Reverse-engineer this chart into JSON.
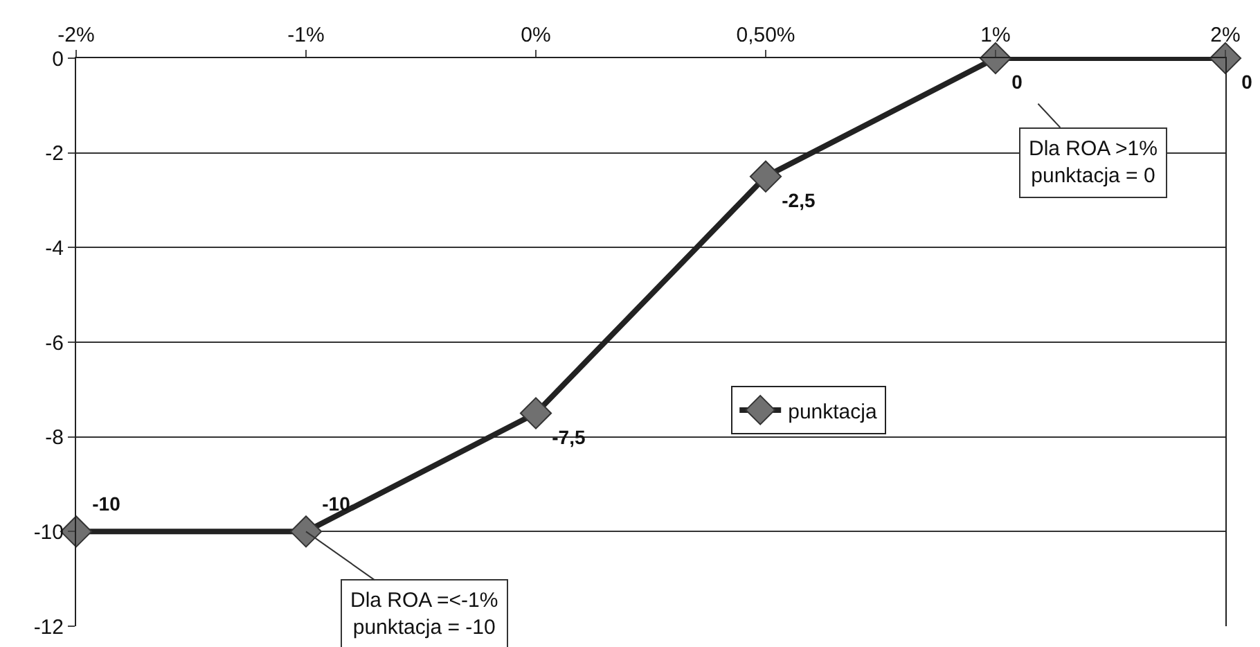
{
  "chart_data": {
    "type": "line",
    "categories": [
      "-2%",
      "-1%",
      "0%",
      "0,50%",
      "1%",
      "2%"
    ],
    "series": [
      {
        "name": "punktacja",
        "color": "#222222",
        "values": [
          -10,
          -10,
          -7.5,
          -2.5,
          0,
          0
        ],
        "value_labels": [
          "-10",
          "-10",
          "-7,5",
          "-2,5",
          "0",
          "0"
        ]
      }
    ],
    "ylim": [
      -12,
      0
    ],
    "yticks": [
      -12,
      -10,
      -8,
      -6,
      -4,
      -2,
      0
    ],
    "grid": "y",
    "legend": "center",
    "marker": "diamond",
    "line_style": "solid",
    "annotations": [
      {
        "text": "Dla ROA >1%\npunktacja = 0",
        "x": "1%",
        "y": 0
      },
      {
        "text": "Dla ROA =<-1%\npunktacja = -10",
        "x": "-1%",
        "y": -10
      }
    ]
  }
}
